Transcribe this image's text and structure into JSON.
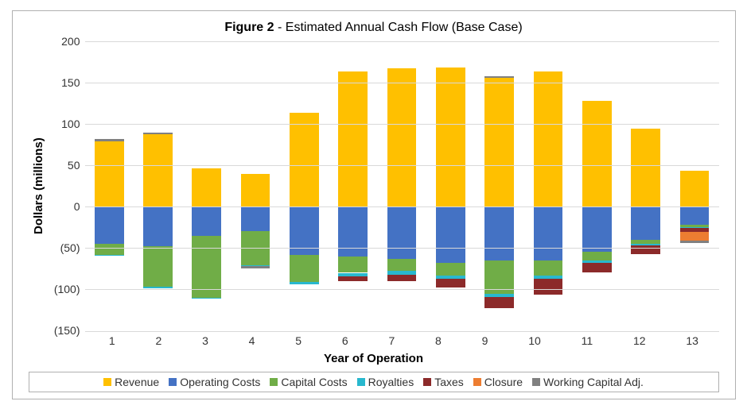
{
  "chart": {
    "type": "stacked-bar",
    "title_prefix": "Figure 2",
    "title_suffix": " - Estimated Annual Cash Flow (Base Case)",
    "title_fontsize": 16,
    "x_label": "Year of Operation",
    "y_label": "Dollars (millions)",
    "label_fontsize": 15,
    "background_color": "#ffffff",
    "grid_color": "#d9d9d9",
    "border_color": "#b0b0b0",
    "ylim": [
      -150,
      200
    ],
    "ytick_step": 50,
    "yticks": [
      200,
      150,
      100,
      50,
      0,
      -50,
      -100,
      -150
    ],
    "ytick_labels": [
      "200",
      "150",
      "100",
      "50",
      "0",
      "(50)",
      "(100)",
      "(150)"
    ],
    "categories": [
      "1",
      "2",
      "3",
      "4",
      "5",
      "6",
      "7",
      "8",
      "9",
      "10",
      "11",
      "12",
      "13"
    ],
    "series": [
      {
        "key": "revenue",
        "label": "Revenue",
        "color": "#ffc000"
      },
      {
        "key": "operating_costs",
        "label": "Operating Costs",
        "color": "#4472c4"
      },
      {
        "key": "capital_costs",
        "label": "Capital Costs",
        "color": "#70ad47"
      },
      {
        "key": "royalties",
        "label": "Royalties",
        "color": "#28b8ce"
      },
      {
        "key": "taxes",
        "label": "Taxes",
        "color": "#8c2a2a"
      },
      {
        "key": "closure",
        "label": "Closure",
        "color": "#ed7d31"
      },
      {
        "key": "working_capital",
        "label": "Working Capital Adj.",
        "color": "#808080"
      }
    ],
    "data": [
      {
        "revenue": 79,
        "operating_costs": -45,
        "capital_costs": -13,
        "royalties": -1,
        "taxes": 0,
        "closure": 0,
        "working_capital": 3
      },
      {
        "revenue": 87,
        "operating_costs": -48,
        "capital_costs": -49,
        "royalties": -2,
        "taxes": 0,
        "closure": 0,
        "working_capital": 2
      },
      {
        "revenue": 46,
        "operating_costs": -35,
        "capital_costs": -75,
        "royalties": -1,
        "taxes": 0,
        "closure": 0,
        "working_capital": 0
      },
      {
        "revenue": 39,
        "operating_costs": -30,
        "capital_costs": -41,
        "royalties": -1,
        "taxes": 0,
        "closure": 0,
        "working_capital": -3
      },
      {
        "revenue": 113,
        "operating_costs": -58,
        "capital_costs": -33,
        "royalties": -3,
        "taxes": 0,
        "closure": 0,
        "working_capital": 0
      },
      {
        "revenue": 163,
        "operating_costs": -60,
        "capital_costs": -20,
        "royalties": -4,
        "taxes": -6,
        "closure": 0,
        "working_capital": 0
      },
      {
        "revenue": 167,
        "operating_costs": -63,
        "capital_costs": -15,
        "royalties": -4,
        "taxes": -8,
        "closure": 0,
        "working_capital": 0
      },
      {
        "revenue": 168,
        "operating_costs": -68,
        "capital_costs": -15,
        "royalties": -4,
        "taxes": -11,
        "closure": 0,
        "working_capital": 0
      },
      {
        "revenue": 155,
        "operating_costs": -65,
        "capital_costs": -40,
        "royalties": -4,
        "taxes": -14,
        "closure": 0,
        "working_capital": 2
      },
      {
        "revenue": 163,
        "operating_costs": -65,
        "capital_costs": -18,
        "royalties": -4,
        "taxes": -19,
        "closure": 0,
        "working_capital": 0
      },
      {
        "revenue": 128,
        "operating_costs": -55,
        "capital_costs": -10,
        "royalties": -3,
        "taxes": -12,
        "closure": 0,
        "working_capital": 0
      },
      {
        "revenue": 94,
        "operating_costs": -40,
        "capital_costs": -5,
        "royalties": -2,
        "taxes": -10,
        "closure": 0,
        "working_capital": 0
      },
      {
        "revenue": 43,
        "operating_costs": -22,
        "capital_costs": -3,
        "royalties": -1,
        "taxes": -5,
        "closure": -10,
        "working_capital": -3
      }
    ],
    "bar_width": 0.6
  }
}
